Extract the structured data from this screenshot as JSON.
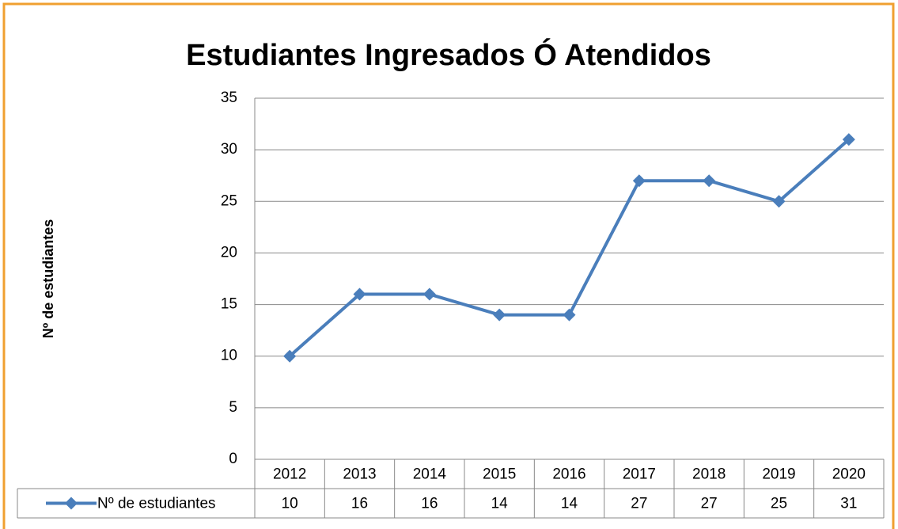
{
  "chart_data": {
    "type": "line",
    "title": "Estudiantes Ingresados Ó Atendidos",
    "y_label": "Nº  de estudiantes",
    "categories": [
      "2012",
      "2013",
      "2014",
      "2015",
      "2016",
      "2017",
      "2018",
      "2019",
      "2020"
    ],
    "series": [
      {
        "name": "Nº de estudiantes",
        "color": "#4a7ebb",
        "values": [
          10,
          16,
          16,
          14,
          14,
          27,
          27,
          25,
          31
        ]
      }
    ],
    "ylim": [
      0,
      35
    ],
    "yticks": [
      0,
      5,
      10,
      15,
      20,
      25,
      30,
      35
    ],
    "grid": true,
    "data_table": true
  }
}
